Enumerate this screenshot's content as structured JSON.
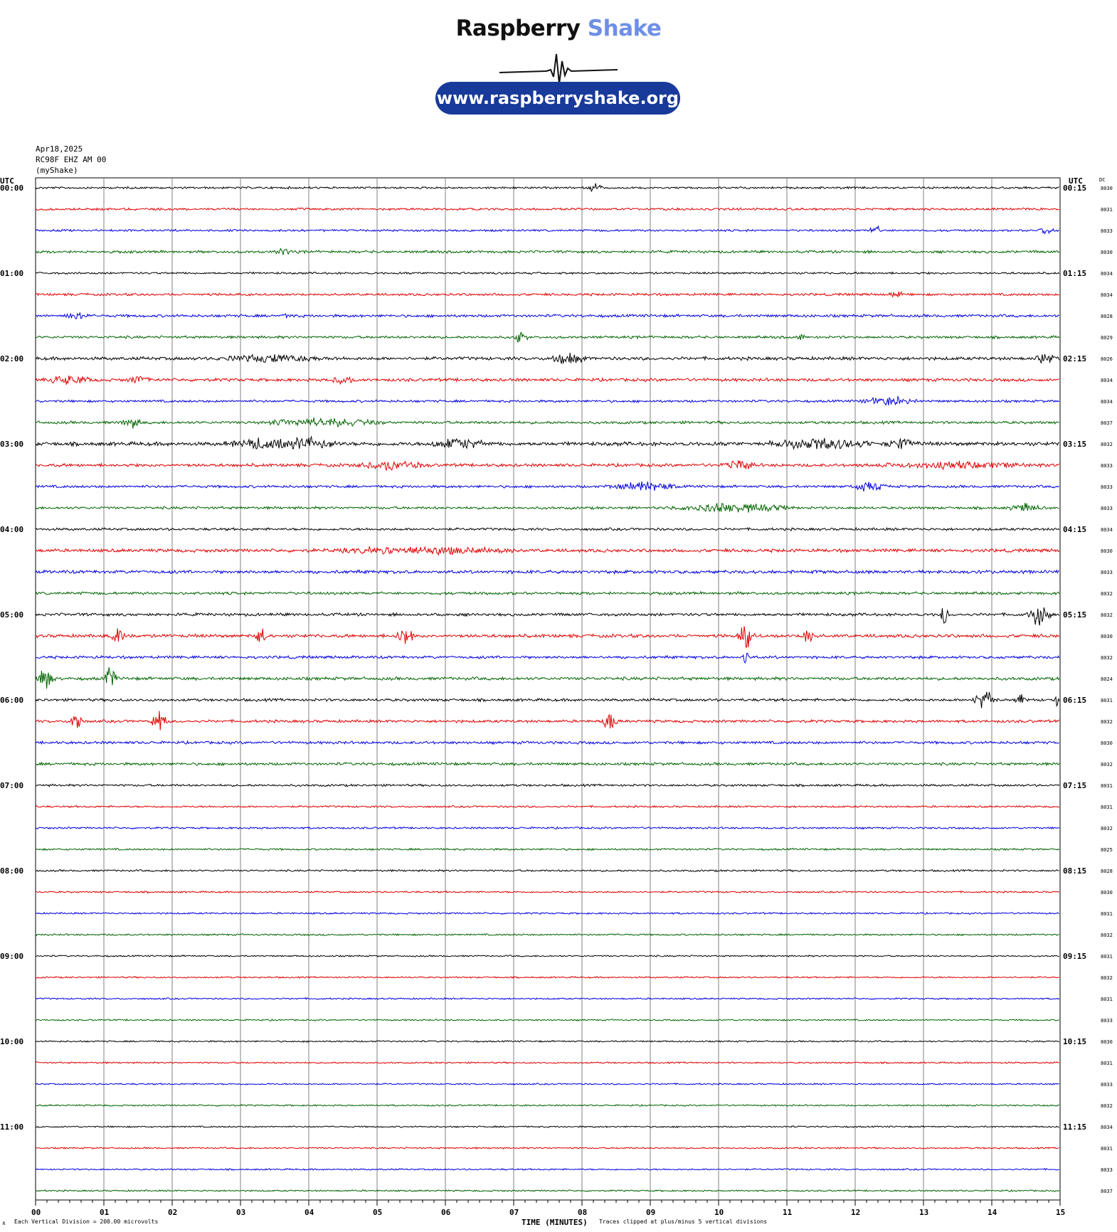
{
  "brand": {
    "title_part1": "Raspberry",
    "title_part2": "Shake",
    "url": "www.raspberryshake.org"
  },
  "header": {
    "date": "Apr18,2025",
    "station": "RC98F EHZ AM 00",
    "network": "(myShake)"
  },
  "colors": {
    "black": "#000000",
    "red": "#e00000",
    "blue": "#0000e0",
    "green": "#006400",
    "grid": "#808080",
    "brand_blue": "#183a9a",
    "brand_light": "#6f8fe6"
  },
  "footer": {
    "scale_note": "Each Vertical Division =  200.00 microvolts",
    "clip_note": "Traces clipped at plus/minus 5 vertical divisions"
  },
  "chart_data": {
    "type": "line",
    "title": "",
    "xlabel": "TIME (MINUTES)",
    "xlim": [
      0,
      15
    ],
    "x_ticks": [
      "00",
      "01",
      "02",
      "03",
      "04",
      "05",
      "06",
      "07",
      "08",
      "09",
      "10",
      "11",
      "12",
      "13",
      "14",
      "15"
    ],
    "left_axis_title": "UTC",
    "right_axis_title": "UTC",
    "dc_label": "DC",
    "row_minutes": 15,
    "trace_color_cycle": [
      "black",
      "red",
      "blue",
      "green"
    ],
    "left_hour_labels": [
      "00:00",
      "01:00",
      "02:00",
      "03:00",
      "04:00",
      "05:00",
      "06:00",
      "07:00",
      "08:00",
      "09:00",
      "10:00",
      "11:00"
    ],
    "right_hour_labels": [
      "00:15",
      "01:15",
      "02:15",
      "03:15",
      "04:15",
      "05:15",
      "06:15",
      "07:15",
      "08:15",
      "09:15",
      "10:15",
      "11:15"
    ],
    "dc_values": [
      "8030",
      "8031",
      "8033",
      "8030",
      "8034",
      "8034",
      "8028",
      "8029",
      "8026",
      "8034",
      "8034",
      "8037",
      "8032",
      "8033",
      "8033",
      "8033",
      "8034",
      "8030",
      "8033",
      "8032",
      "8032",
      "8030",
      "8032",
      "8024",
      "8031",
      "8032",
      "8030",
      "8032",
      "8031",
      "8031",
      "8032",
      "8025",
      "8028",
      "8030",
      "8031",
      "8032",
      "8031",
      "8032",
      "8031",
      "8033",
      "8030",
      "8031",
      "8033",
      "8032",
      "8034",
      "8031",
      "8033",
      "8037"
    ],
    "row_activity": [
      1.2,
      1.3,
      1.2,
      1.5,
      1.2,
      1.4,
      1.6,
      1.5,
      1.9,
      1.8,
      1.4,
      1.6,
      2.2,
      1.8,
      1.5,
      1.5,
      1.5,
      1.9,
      1.9,
      1.6,
      1.7,
      1.9,
      1.6,
      1.8,
      1.6,
      1.6,
      1.6,
      1.6,
      1.3,
      1.1,
      1.1,
      1.1,
      1.1,
      1.0,
      1.0,
      1.0,
      0.9,
      0.9,
      0.9,
      0.9,
      0.9,
      0.9,
      0.9,
      0.9,
      0.9,
      0.9,
      0.9,
      0.9
    ],
    "events": [
      {
        "row": 0,
        "x": 8.2,
        "amp": 6,
        "w": 0.12
      },
      {
        "row": 2,
        "x": 12.3,
        "amp": 6,
        "w": 0.1
      },
      {
        "row": 2,
        "x": 14.8,
        "amp": 4,
        "w": 0.15
      },
      {
        "row": 3,
        "x": 3.6,
        "amp": 6,
        "w": 0.15
      },
      {
        "row": 5,
        "x": 12.6,
        "amp": 5,
        "w": 0.12
      },
      {
        "row": 6,
        "x": 0.6,
        "amp": 5,
        "w": 0.2
      },
      {
        "row": 6,
        "x": 3.7,
        "amp": 3,
        "w": 0.1
      },
      {
        "row": 7,
        "x": 7.1,
        "amp": 7,
        "w": 0.12
      },
      {
        "row": 7,
        "x": 11.2,
        "amp": 5,
        "w": 0.08
      },
      {
        "row": 8,
        "x": 3.5,
        "amp": 4,
        "w": 0.9
      },
      {
        "row": 8,
        "x": 7.8,
        "amp": 6,
        "w": 0.3
      },
      {
        "row": 8,
        "x": 14.8,
        "amp": 6,
        "w": 0.2
      },
      {
        "row": 9,
        "x": 0.5,
        "amp": 5,
        "w": 0.4
      },
      {
        "row": 9,
        "x": 1.5,
        "amp": 5,
        "w": 0.2
      },
      {
        "row": 9,
        "x": 4.5,
        "amp": 5,
        "w": 0.2
      },
      {
        "row": 10,
        "x": 12.5,
        "amp": 5,
        "w": 0.5
      },
      {
        "row": 11,
        "x": 1.4,
        "amp": 6,
        "w": 0.2
      },
      {
        "row": 11,
        "x": 4.2,
        "amp": 5,
        "w": 1.0
      },
      {
        "row": 12,
        "x": 3.4,
        "amp": 6,
        "w": 0.7
      },
      {
        "row": 12,
        "x": 4.0,
        "amp": 6,
        "w": 0.5
      },
      {
        "row": 12,
        "x": 6.2,
        "amp": 6,
        "w": 0.5
      },
      {
        "row": 12,
        "x": 11.5,
        "amp": 6,
        "w": 0.9
      },
      {
        "row": 12,
        "x": 12.7,
        "amp": 5,
        "w": 0.3
      },
      {
        "row": 13,
        "x": 5.2,
        "amp": 5,
        "w": 0.6
      },
      {
        "row": 13,
        "x": 10.3,
        "amp": 5,
        "w": 0.3
      },
      {
        "row": 13,
        "x": 13.5,
        "amp": 3,
        "w": 1.5
      },
      {
        "row": 14,
        "x": 8.9,
        "amp": 5,
        "w": 0.6
      },
      {
        "row": 14,
        "x": 12.2,
        "amp": 5,
        "w": 0.3
      },
      {
        "row": 15,
        "x": 10.2,
        "amp": 5,
        "w": 1.0
      },
      {
        "row": 15,
        "x": 14.5,
        "amp": 4,
        "w": 0.3
      },
      {
        "row": 17,
        "x": 5.7,
        "amp": 4,
        "w": 1.6
      },
      {
        "row": 21,
        "x": 1.2,
        "amp": 12,
        "w": 0.12
      },
      {
        "row": 21,
        "x": 3.3,
        "amp": 12,
        "w": 0.1
      },
      {
        "row": 21,
        "x": 5.4,
        "amp": 12,
        "w": 0.15
      },
      {
        "row": 21,
        "x": 10.4,
        "amp": 14,
        "w": 0.15
      },
      {
        "row": 21,
        "x": 11.3,
        "amp": 10,
        "w": 0.1
      },
      {
        "row": 20,
        "x": 13.3,
        "amp": 14,
        "w": 0.08
      },
      {
        "row": 20,
        "x": 14.7,
        "amp": 14,
        "w": 0.2
      },
      {
        "row": 22,
        "x": 10.4,
        "amp": 14,
        "w": 0.05
      },
      {
        "row": 23,
        "x": 0.15,
        "amp": 14,
        "w": 0.15
      },
      {
        "row": 23,
        "x": 1.1,
        "amp": 14,
        "w": 0.1
      },
      {
        "row": 24,
        "x": 13.9,
        "amp": 12,
        "w": 0.2
      },
      {
        "row": 24,
        "x": 14.4,
        "amp": 10,
        "w": 0.1
      },
      {
        "row": 24,
        "x": 14.95,
        "amp": 8,
        "w": 0.05
      },
      {
        "row": 25,
        "x": 0.6,
        "amp": 14,
        "w": 0.1
      },
      {
        "row": 25,
        "x": 1.8,
        "amp": 14,
        "w": 0.15
      },
      {
        "row": 25,
        "x": 8.4,
        "amp": 10,
        "w": 0.15
      }
    ]
  }
}
